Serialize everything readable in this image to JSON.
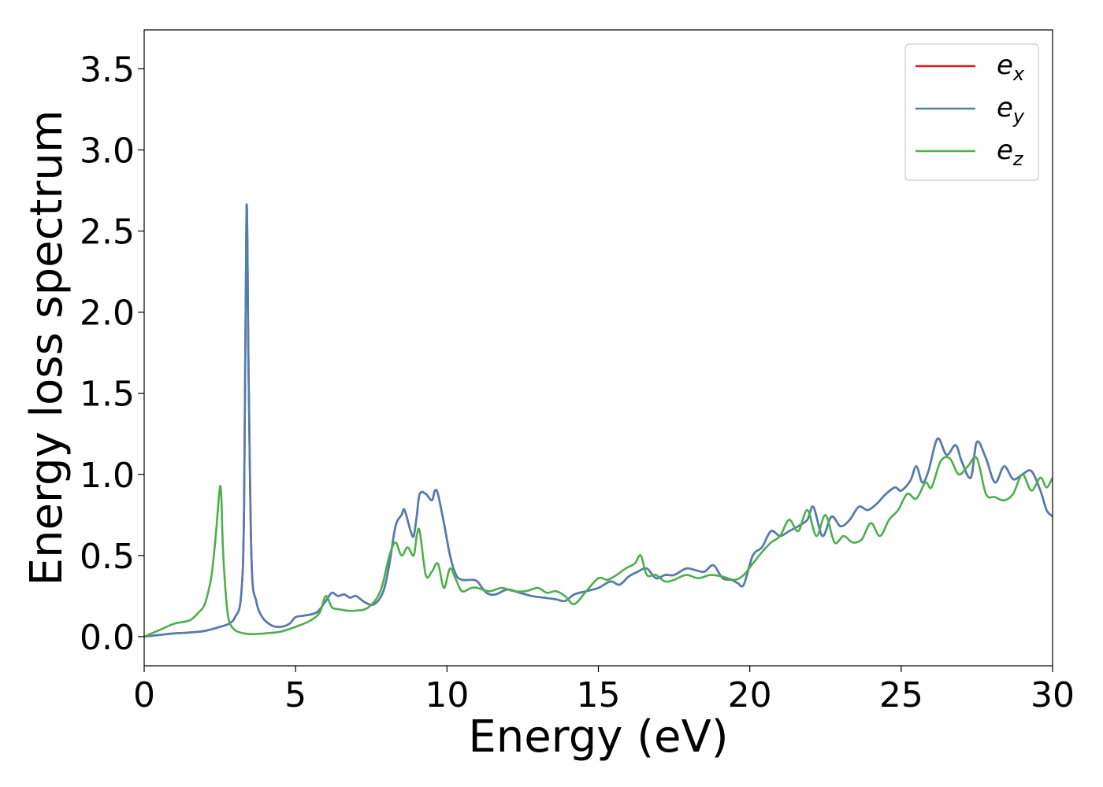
{
  "chart_data": {
    "type": "line",
    "xlabel": "Energy (eV)",
    "ylabel": "Energy loss spectrum",
    "xlim": [
      0,
      30
    ],
    "ylim": [
      -0.18,
      3.74
    ],
    "xticks": [
      0,
      5,
      10,
      15,
      20,
      25,
      30
    ],
    "xtick_labels": [
      "0",
      "5",
      "10",
      "15",
      "20",
      "25",
      "30"
    ],
    "yticks": [
      0.0,
      0.5,
      1.0,
      1.5,
      2.0,
      2.5,
      3.0,
      3.5
    ],
    "ytick_labels": [
      "0.0",
      "0.5",
      "1.0",
      "1.5",
      "2.0",
      "2.5",
      "3.0",
      "3.5"
    ],
    "grid": false,
    "legend_position": "top-right",
    "series": [
      {
        "name": "e",
        "sub": "x",
        "color": "#e41a1c",
        "x": [
          0,
          0.5,
          1,
          1.5,
          2,
          2.5,
          2.8,
          3.0,
          3.2,
          3.3,
          3.38,
          3.45,
          3.55,
          3.7,
          3.9,
          4.2,
          4.5,
          4.8,
          5.0,
          5.3,
          5.7,
          6.0,
          6.2,
          6.4,
          6.6,
          6.8,
          7.0,
          7.3,
          7.6,
          7.9,
          8.1,
          8.3,
          8.5,
          8.6,
          8.8,
          8.9,
          9.0,
          9.1,
          9.3,
          9.5,
          9.6,
          9.7,
          9.9,
          10.1,
          10.3,
          10.5,
          10.8,
          11.0,
          11.3,
          11.6,
          12.0,
          12.4,
          12.8,
          13.2,
          13.6,
          13.9,
          14.2,
          14.6,
          15.0,
          15.4,
          15.7,
          16.0,
          16.3,
          16.6,
          16.9,
          17.2,
          17.5,
          17.9,
          18.2,
          18.5,
          18.8,
          19.1,
          19.4,
          19.6,
          19.8,
          20.1,
          20.4,
          20.7,
          21.0,
          21.3,
          21.6,
          21.9,
          22.1,
          22.4,
          22.7,
          23.0,
          23.3,
          23.6,
          23.9,
          24.2,
          24.5,
          24.8,
          25.0,
          25.3,
          25.5,
          25.7,
          25.9,
          26.2,
          26.5,
          26.8,
          27.0,
          27.3,
          27.5,
          27.8,
          28.1,
          28.4,
          28.7,
          29.0,
          29.3,
          29.6,
          29.8,
          30.0
        ],
        "y": [
          0,
          0.01,
          0.02,
          0.025,
          0.035,
          0.06,
          0.08,
          0.12,
          0.25,
          0.8,
          2.65,
          1.6,
          0.45,
          0.22,
          0.12,
          0.07,
          0.06,
          0.08,
          0.12,
          0.13,
          0.15,
          0.22,
          0.27,
          0.25,
          0.26,
          0.24,
          0.25,
          0.21,
          0.2,
          0.28,
          0.45,
          0.68,
          0.75,
          0.78,
          0.65,
          0.62,
          0.74,
          0.88,
          0.88,
          0.84,
          0.9,
          0.88,
          0.7,
          0.5,
          0.38,
          0.35,
          0.35,
          0.34,
          0.27,
          0.26,
          0.29,
          0.27,
          0.25,
          0.24,
          0.23,
          0.22,
          0.26,
          0.28,
          0.3,
          0.34,
          0.32,
          0.37,
          0.4,
          0.42,
          0.36,
          0.38,
          0.38,
          0.42,
          0.41,
          0.4,
          0.44,
          0.36,
          0.35,
          0.33,
          0.32,
          0.5,
          0.55,
          0.65,
          0.62,
          0.65,
          0.68,
          0.72,
          0.8,
          0.62,
          0.74,
          0.68,
          0.72,
          0.8,
          0.78,
          0.82,
          0.88,
          0.92,
          0.9,
          0.96,
          1.05,
          0.95,
          1.02,
          1.22,
          1.12,
          1.18,
          1.08,
          0.98,
          1.2,
          1.1,
          0.95,
          1.05,
          0.97,
          1.0,
          1.02,
          0.9,
          0.78,
          0.74
        ]
      },
      {
        "name": "e",
        "sub": "y",
        "color": "#4e7fb3",
        "x": [
          0,
          0.5,
          1,
          1.5,
          2,
          2.5,
          2.8,
          3.0,
          3.2,
          3.3,
          3.38,
          3.45,
          3.55,
          3.7,
          3.9,
          4.2,
          4.5,
          4.8,
          5.0,
          5.3,
          5.7,
          6.0,
          6.2,
          6.4,
          6.6,
          6.8,
          7.0,
          7.3,
          7.6,
          7.9,
          8.1,
          8.3,
          8.5,
          8.6,
          8.8,
          8.9,
          9.0,
          9.1,
          9.3,
          9.5,
          9.6,
          9.7,
          9.9,
          10.1,
          10.3,
          10.5,
          10.8,
          11.0,
          11.3,
          11.6,
          12.0,
          12.4,
          12.8,
          13.2,
          13.6,
          13.9,
          14.2,
          14.6,
          15.0,
          15.4,
          15.7,
          16.0,
          16.3,
          16.6,
          16.9,
          17.2,
          17.5,
          17.9,
          18.2,
          18.5,
          18.8,
          19.1,
          19.4,
          19.6,
          19.8,
          20.1,
          20.4,
          20.7,
          21.0,
          21.3,
          21.6,
          21.9,
          22.1,
          22.4,
          22.7,
          23.0,
          23.3,
          23.6,
          23.9,
          24.2,
          24.5,
          24.8,
          25.0,
          25.3,
          25.5,
          25.7,
          25.9,
          26.2,
          26.5,
          26.8,
          27.0,
          27.3,
          27.5,
          27.8,
          28.1,
          28.4,
          28.7,
          29.0,
          29.3,
          29.6,
          29.8,
          30.0
        ],
        "y": [
          0,
          0.01,
          0.02,
          0.025,
          0.035,
          0.06,
          0.08,
          0.12,
          0.25,
          0.8,
          2.65,
          1.6,
          0.45,
          0.22,
          0.12,
          0.07,
          0.06,
          0.08,
          0.12,
          0.13,
          0.15,
          0.22,
          0.27,
          0.25,
          0.26,
          0.24,
          0.25,
          0.21,
          0.2,
          0.28,
          0.45,
          0.68,
          0.75,
          0.78,
          0.65,
          0.62,
          0.74,
          0.88,
          0.88,
          0.84,
          0.9,
          0.88,
          0.7,
          0.5,
          0.38,
          0.35,
          0.35,
          0.34,
          0.27,
          0.26,
          0.29,
          0.27,
          0.25,
          0.24,
          0.23,
          0.22,
          0.26,
          0.28,
          0.3,
          0.34,
          0.32,
          0.37,
          0.4,
          0.42,
          0.36,
          0.38,
          0.38,
          0.42,
          0.41,
          0.4,
          0.44,
          0.36,
          0.35,
          0.33,
          0.32,
          0.5,
          0.55,
          0.65,
          0.62,
          0.65,
          0.68,
          0.72,
          0.8,
          0.62,
          0.74,
          0.68,
          0.72,
          0.8,
          0.78,
          0.82,
          0.88,
          0.92,
          0.9,
          0.96,
          1.05,
          0.95,
          1.02,
          1.22,
          1.12,
          1.18,
          1.08,
          0.98,
          1.2,
          1.1,
          0.95,
          1.05,
          0.97,
          1.0,
          1.02,
          0.9,
          0.78,
          0.74
        ]
      },
      {
        "name": "e",
        "sub": "z",
        "color": "#4daf4a",
        "x": [
          0,
          0.5,
          1.0,
          1.5,
          1.8,
          2.0,
          2.2,
          2.3,
          2.4,
          2.5,
          2.55,
          2.6,
          2.7,
          2.8,
          3.0,
          3.3,
          3.6,
          4.0,
          4.5,
          5.0,
          5.5,
          5.8,
          6.0,
          6.2,
          6.4,
          6.7,
          7.0,
          7.4,
          7.8,
          8.1,
          8.3,
          8.5,
          8.7,
          8.9,
          9.0,
          9.1,
          9.3,
          9.5,
          9.7,
          9.9,
          10.1,
          10.3,
          10.5,
          10.8,
          11.0,
          11.4,
          11.8,
          12.2,
          12.6,
          13.0,
          13.3,
          13.6,
          13.9,
          14.2,
          14.6,
          15.0,
          15.3,
          15.6,
          15.9,
          16.2,
          16.4,
          16.6,
          16.9,
          17.2,
          17.5,
          17.9,
          18.3,
          18.7,
          19.1,
          19.5,
          19.8,
          20.1,
          20.4,
          20.7,
          21.0,
          21.3,
          21.6,
          21.9,
          22.2,
          22.5,
          22.8,
          23.1,
          23.4,
          23.7,
          24.0,
          24.3,
          24.6,
          24.9,
          25.2,
          25.5,
          25.8,
          26.0,
          26.3,
          26.6,
          26.9,
          27.2,
          27.5,
          27.8,
          28.1,
          28.4,
          28.7,
          29.0,
          29.3,
          29.6,
          29.8,
          30.0
        ],
        "y": [
          0,
          0.04,
          0.08,
          0.1,
          0.15,
          0.2,
          0.35,
          0.5,
          0.7,
          0.92,
          0.85,
          0.55,
          0.25,
          0.1,
          0.04,
          0.02,
          0.015,
          0.02,
          0.03,
          0.06,
          0.1,
          0.15,
          0.25,
          0.18,
          0.17,
          0.16,
          0.16,
          0.18,
          0.28,
          0.5,
          0.58,
          0.5,
          0.55,
          0.5,
          0.62,
          0.65,
          0.38,
          0.4,
          0.45,
          0.3,
          0.42,
          0.35,
          0.28,
          0.3,
          0.3,
          0.28,
          0.3,
          0.28,
          0.28,
          0.3,
          0.27,
          0.28,
          0.25,
          0.2,
          0.28,
          0.36,
          0.35,
          0.38,
          0.42,
          0.45,
          0.5,
          0.38,
          0.38,
          0.34,
          0.35,
          0.38,
          0.36,
          0.38,
          0.37,
          0.35,
          0.38,
          0.45,
          0.52,
          0.58,
          0.62,
          0.72,
          0.65,
          0.78,
          0.62,
          0.75,
          0.58,
          0.62,
          0.58,
          0.6,
          0.7,
          0.62,
          0.72,
          0.78,
          0.88,
          0.85,
          0.95,
          0.92,
          1.08,
          1.1,
          1.0,
          1.05,
          1.1,
          0.88,
          0.86,
          0.84,
          0.88,
          1.0,
          0.9,
          0.98,
          0.92,
          0.98
        ]
      }
    ]
  }
}
